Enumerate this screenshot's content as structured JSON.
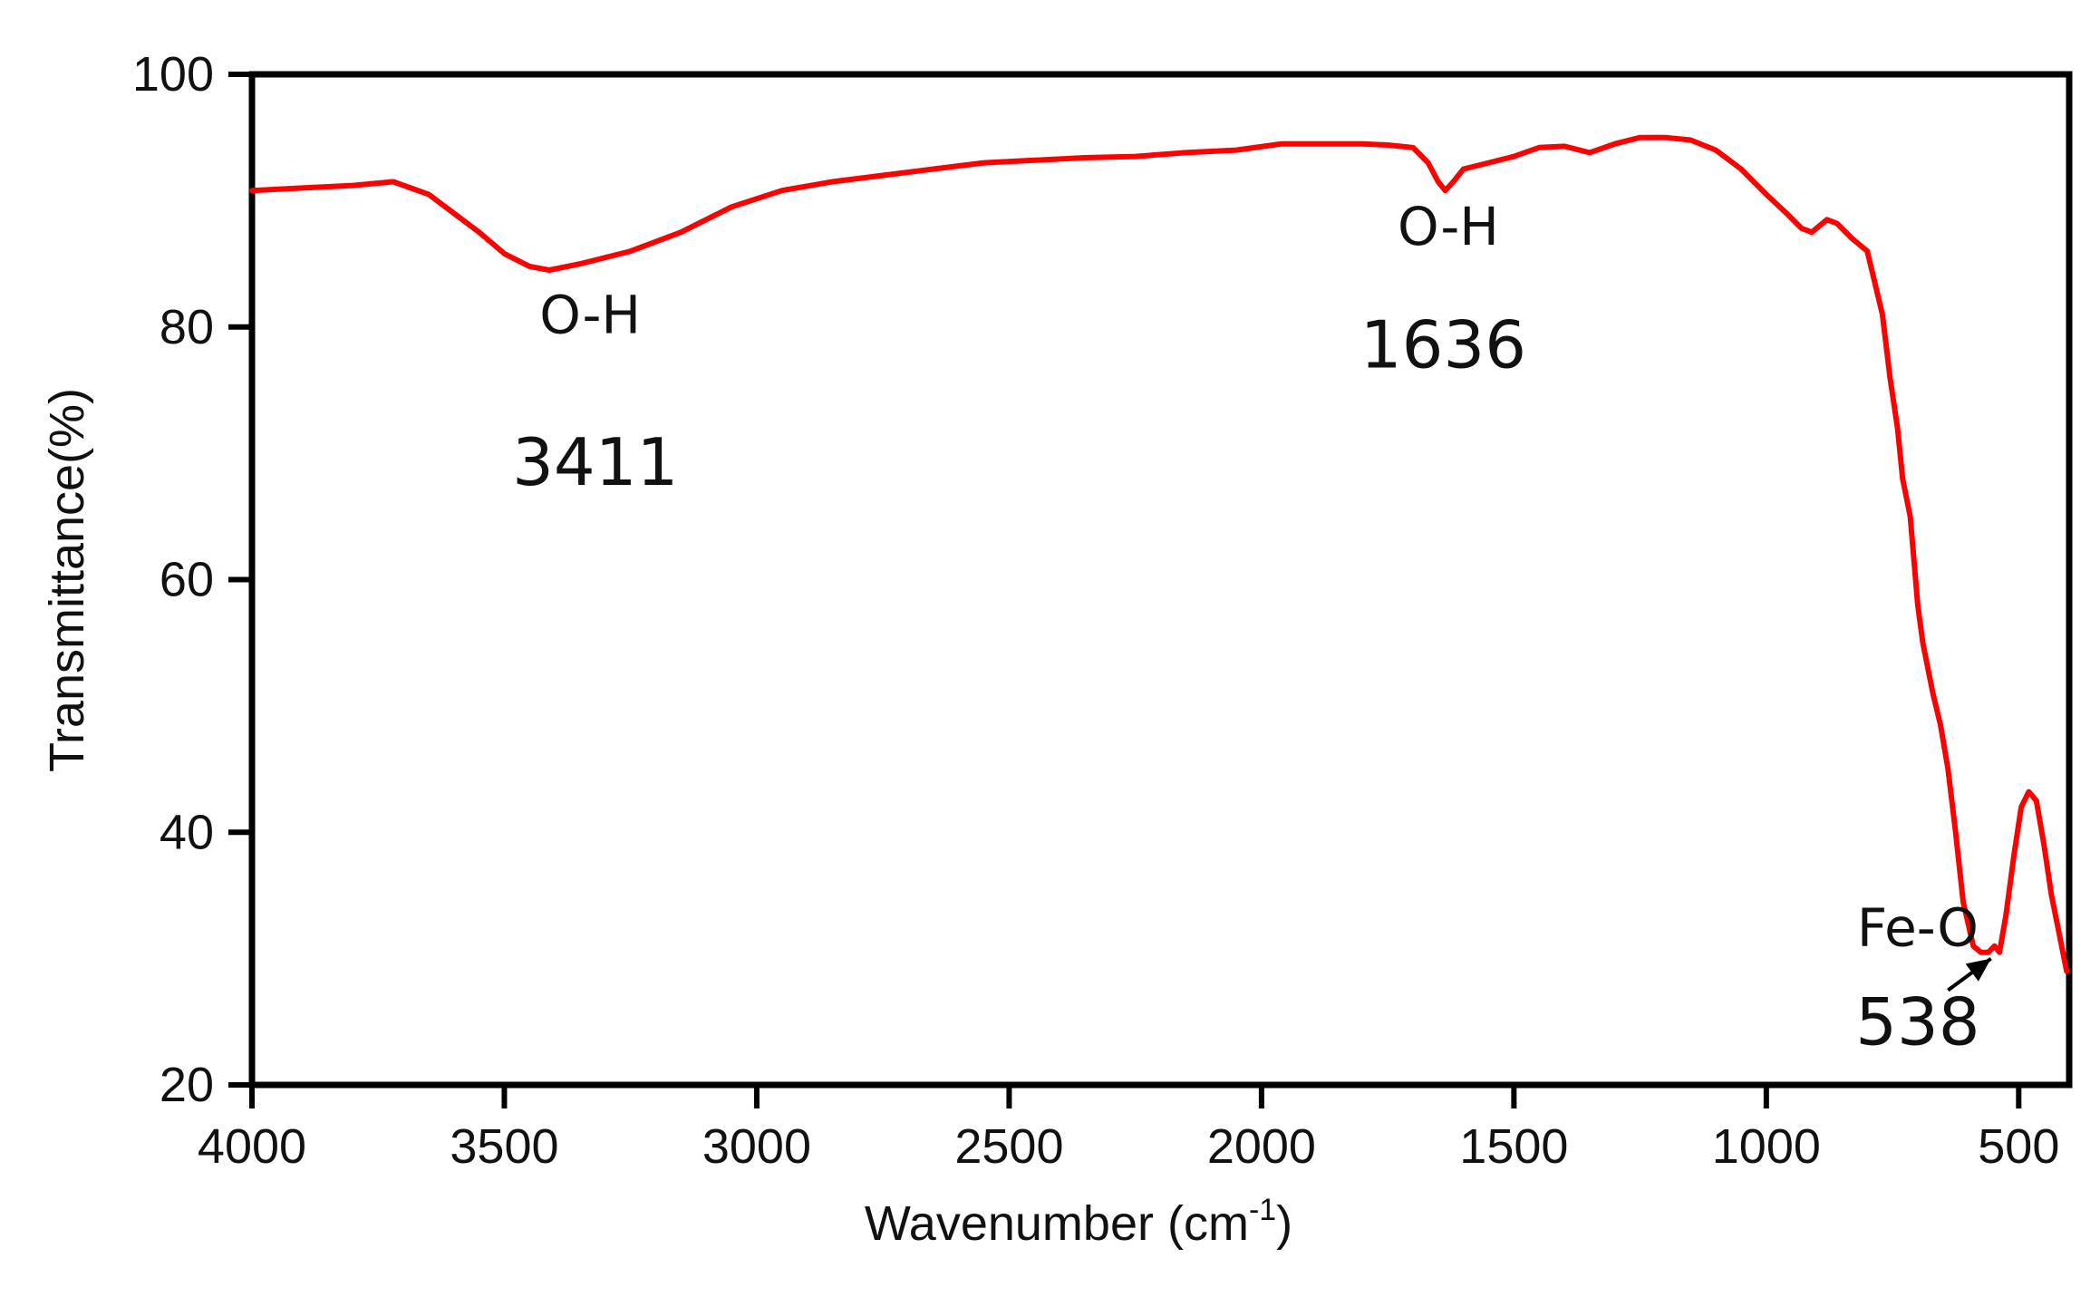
{
  "chart_data": {
    "type": "line",
    "title": "",
    "xlabel": "Wavenumber (cm",
    "xlabel_sup": "-1",
    "xlabel_close": ")",
    "ylabel": "Transmittance(%)",
    "xlim": [
      4000,
      400
    ],
    "x_reversed": true,
    "ylim": [
      20,
      100
    ],
    "grid": false,
    "legend": "none",
    "xticks": [
      4000,
      3500,
      3000,
      2500,
      2000,
      1500,
      1000,
      500
    ],
    "xtick_labels": [
      "4000",
      "3500",
      "3000",
      "2500",
      "2000",
      "1500",
      "1000",
      "500"
    ],
    "yticks": [
      20,
      40,
      60,
      80,
      100
    ],
    "ytick_labels": [
      "20",
      "40",
      "60",
      "80",
      "100"
    ],
    "line_color": "#ff0000",
    "series": [
      {
        "x": [
          4000,
          3900,
          3800,
          3720,
          3650,
          3600,
          3550,
          3500,
          3450,
          3411,
          3350,
          3250,
          3150,
          3050,
          2950,
          2850,
          2750,
          2650,
          2550,
          2450,
          2350,
          2250,
          2150,
          2050,
          1960,
          1900,
          1800,
          1750,
          1700,
          1670,
          1650,
          1636,
          1620,
          1600,
          1550,
          1500,
          1450,
          1400,
          1350,
          1300,
          1250,
          1200,
          1150,
          1100,
          1050,
          1000,
          960,
          930,
          910,
          895,
          880,
          860,
          830,
          800,
          770,
          755,
          740,
          730,
          715,
          700,
          690,
          670,
          655,
          640,
          625,
          610,
          590,
          575,
          560,
          548,
          538,
          525,
          510,
          495,
          480,
          465,
          450,
          435,
          420,
          405
        ],
        "y": [
          90.8,
          91.0,
          91.2,
          91.5,
          90.5,
          89.0,
          87.5,
          85.8,
          84.8,
          84.5,
          85.0,
          86.0,
          87.5,
          89.5,
          90.8,
          91.5,
          92.0,
          92.5,
          93.0,
          93.2,
          93.4,
          93.5,
          93.8,
          94.0,
          94.5,
          94.5,
          94.5,
          94.4,
          94.2,
          93.0,
          91.5,
          90.8,
          91.5,
          92.5,
          93.0,
          93.5,
          94.2,
          94.3,
          93.8,
          94.5,
          95.0,
          95.0,
          94.8,
          94.0,
          92.5,
          90.5,
          89.0,
          87.8,
          87.5,
          88.0,
          88.5,
          88.2,
          87.0,
          86.0,
          81.0,
          76.0,
          72.0,
          68.0,
          65.0,
          58.0,
          55.0,
          51.0,
          48.5,
          45.0,
          40.0,
          34.5,
          31.0,
          30.5,
          30.5,
          31.0,
          30.5,
          33.5,
          38.0,
          42.0,
          43.2,
          42.5,
          39.0,
          35.0,
          32.0,
          29.0
        ]
      }
    ],
    "annotations": [
      {
        "id": "oh-3411-label",
        "text": "O-H",
        "x": 3330,
        "y": 79.5,
        "size": "medium"
      },
      {
        "id": "oh-3411-value",
        "text": "3411",
        "x": 3320,
        "y": 67.5,
        "size": "large"
      },
      {
        "id": "oh-1636-label",
        "text": "O-H",
        "x": 1630,
        "y": 86.5,
        "size": "medium"
      },
      {
        "id": "oh-1636-value",
        "text": "1636",
        "x": 1640,
        "y": 76.8,
        "size": "large"
      },
      {
        "id": "feo-label",
        "text": "Fe-O",
        "x": 700,
        "y": 31.0,
        "size": "medium"
      },
      {
        "id": "feo-value",
        "text": "538",
        "x": 700,
        "y": 23.2,
        "size": "large"
      }
    ],
    "arrow": {
      "from": [
        640,
        27.5
      ],
      "to": [
        555,
        30.0
      ]
    }
  }
}
